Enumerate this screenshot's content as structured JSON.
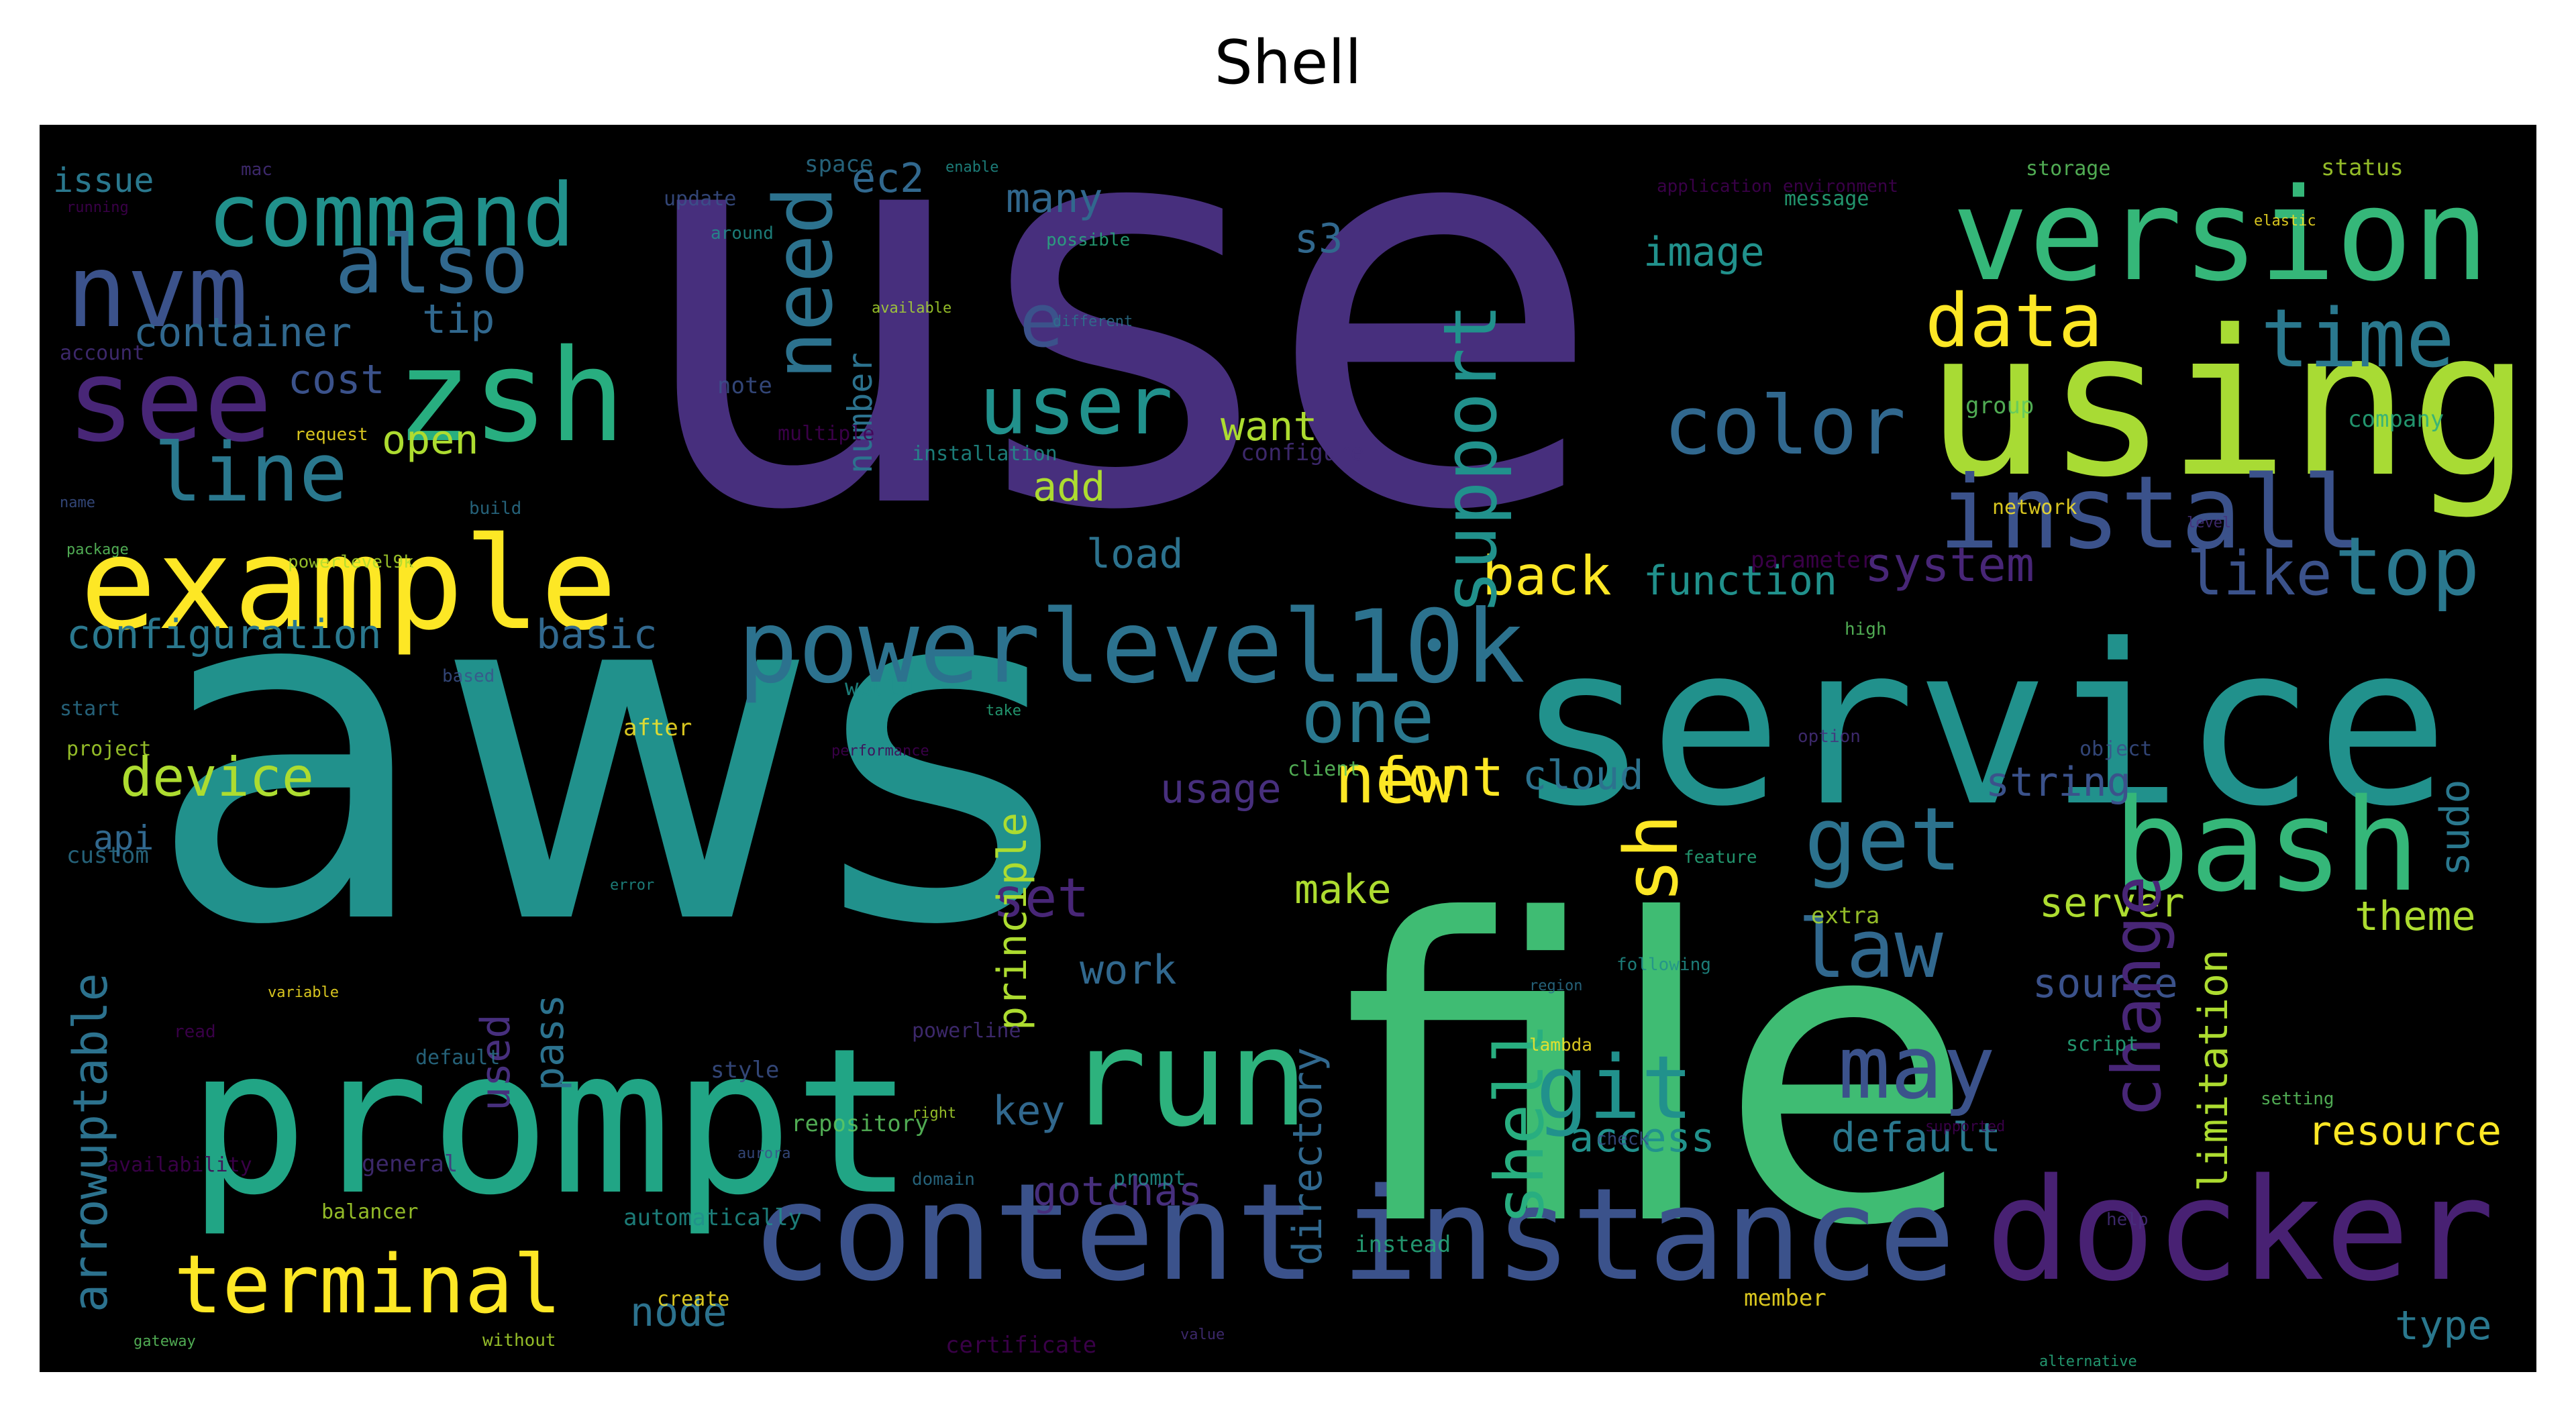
{
  "title": "Shell",
  "palette": [
    "#440154",
    "#472f7d",
    "#3b528b",
    "#2c728e",
    "#21918c",
    "#28ae80",
    "#5ec962",
    "#addc30",
    "#fde725"
  ],
  "words": [
    {
      "text": "use",
      "color": "#472f7d"
    },
    {
      "text": "aws",
      "color": "#21918c"
    },
    {
      "text": "file",
      "color": "#3fbc73"
    },
    {
      "text": "service",
      "color": "#21918c"
    },
    {
      "text": "prompt",
      "color": "#21a585"
    },
    {
      "text": "using",
      "color": "#a8db34"
    },
    {
      "text": "instance",
      "color": "#3b528b"
    },
    {
      "text": "docker",
      "color": "#482173"
    },
    {
      "text": "content",
      "color": "#3b528b"
    },
    {
      "text": "example",
      "color": "#fde725"
    },
    {
      "text": "version",
      "color": "#35b779"
    },
    {
      "text": "powerlevel10k",
      "color": "#2c728e"
    },
    {
      "text": "bash",
      "color": "#35b779"
    },
    {
      "text": "run",
      "color": "#2db27d"
    },
    {
      "text": "zsh",
      "color": "#28ae80"
    },
    {
      "text": "nvm",
      "color": "#3b528b"
    },
    {
      "text": "see",
      "color": "#482677"
    },
    {
      "text": "command",
      "color": "#21918c"
    },
    {
      "text": "terminal",
      "color": "#fde725"
    },
    {
      "text": "install",
      "color": "#3b528b"
    },
    {
      "text": "also",
      "color": "#31688e"
    },
    {
      "text": "line",
      "color": "#2a788e"
    },
    {
      "text": "user",
      "color": "#21918c"
    },
    {
      "text": "time",
      "color": "#2a788e"
    },
    {
      "text": "data",
      "color": "#fde725"
    },
    {
      "text": "color",
      "color": "#31688e"
    },
    {
      "text": "one",
      "color": "#2a788e"
    },
    {
      "text": "new",
      "color": "#fde725"
    },
    {
      "text": "get",
      "color": "#2c728e"
    },
    {
      "text": "may",
      "color": "#3b528b"
    },
    {
      "text": "law",
      "color": "#31688e"
    },
    {
      "text": "git",
      "color": "#21918c"
    },
    {
      "text": "top",
      "color": "#2a788e"
    },
    {
      "text": "like",
      "color": "#3b528b"
    },
    {
      "text": "back",
      "color": "#fde725"
    },
    {
      "text": "system",
      "color": "#482677"
    },
    {
      "text": "function",
      "color": "#21918c"
    },
    {
      "text": "device",
      "color": "#addc30"
    },
    {
      "text": "font",
      "color": "#fde725"
    },
    {
      "text": "cloud",
      "color": "#2c728e"
    },
    {
      "text": "configuration",
      "color": "#2a788e"
    },
    {
      "text": "basic",
      "color": "#31688e"
    },
    {
      "text": "container",
      "color": "#31688e"
    },
    {
      "text": "cost",
      "color": "#3b528b"
    },
    {
      "text": "tip",
      "color": "#31688e"
    },
    {
      "text": "open",
      "color": "#addc30"
    },
    {
      "text": "want",
      "color": "#addc30"
    },
    {
      "text": "add",
      "color": "#addc30"
    },
    {
      "text": "load",
      "color": "#2c728e"
    },
    {
      "text": "image",
      "color": "#21918c"
    },
    {
      "text": "e",
      "color": "#3b528b"
    },
    {
      "text": "s3",
      "color": "#31688e"
    },
    {
      "text": "ec2",
      "color": "#31688e"
    },
    {
      "text": "many",
      "color": "#31688e"
    },
    {
      "text": "issue",
      "color": "#2a788e"
    },
    {
      "text": "usage",
      "color": "#472f7d"
    },
    {
      "text": "set",
      "color": "#482677"
    },
    {
      "text": "work",
      "color": "#31688e"
    },
    {
      "text": "make",
      "color": "#addc30"
    },
    {
      "text": "key",
      "color": "#31688e"
    },
    {
      "text": "node",
      "color": "#2c728e"
    },
    {
      "text": "access",
      "color": "#21918c"
    },
    {
      "text": "default",
      "color": "#2a788e"
    },
    {
      "text": "string",
      "color": "#3b528b"
    },
    {
      "text": "server",
      "color": "#addc30"
    },
    {
      "text": "source",
      "color": "#3b528b"
    },
    {
      "text": "theme",
      "color": "#addc30"
    },
    {
      "text": "resource",
      "color": "#fde725"
    },
    {
      "text": "type",
      "color": "#2a788e"
    },
    {
      "text": "gotchas",
      "color": "#472f7d"
    },
    {
      "text": "api",
      "color": "#31688e"
    },
    {
      "text": "need",
      "color": "#2c728e"
    },
    {
      "text": "support",
      "color": "#21918c"
    },
    {
      "text": "sh",
      "color": "#fde725"
    },
    {
      "text": "shell",
      "color": "#28ae80"
    },
    {
      "text": "change",
      "color": "#482677"
    },
    {
      "text": "arrowuptable",
      "color": "#2c728e"
    },
    {
      "text": "principle",
      "color": "#addc30"
    },
    {
      "text": "directory",
      "color": "#31688e"
    },
    {
      "text": "used",
      "color": "#472f7d"
    },
    {
      "text": "pass",
      "color": "#2c728e"
    },
    {
      "text": "number",
      "color": "#2c728e"
    },
    {
      "text": "limitation",
      "color": "#addc30"
    },
    {
      "text": "sudo",
      "color": "#2a788e"
    }
  ],
  "small_words": [
    "running",
    "mac",
    "update",
    "space",
    "enable",
    "possible",
    "storage",
    "status",
    "elastic",
    "application environment",
    "account",
    "note",
    "different",
    "around",
    "message",
    "group",
    "available",
    "request",
    "multiple",
    "configure",
    "name",
    "build",
    "installation",
    "company",
    "package",
    "powerlevel9k",
    "network",
    "parameter",
    "level",
    "based",
    "start",
    "would",
    "take",
    "high",
    "project",
    "after",
    "performance",
    "option",
    "object",
    "custom",
    "error",
    "feature",
    "client",
    "extra",
    "variable",
    "read",
    "powerline",
    "style",
    "region",
    "following",
    "script",
    "repository",
    "right",
    "lambda",
    "availability",
    "general",
    "aurora",
    "domain",
    "prompt",
    "instead",
    "gateway",
    "without",
    "create",
    "certificate",
    "value",
    "check",
    "default",
    "automatically",
    "alternative",
    "setting",
    "balancer",
    "member",
    "supported",
    "help"
  ]
}
